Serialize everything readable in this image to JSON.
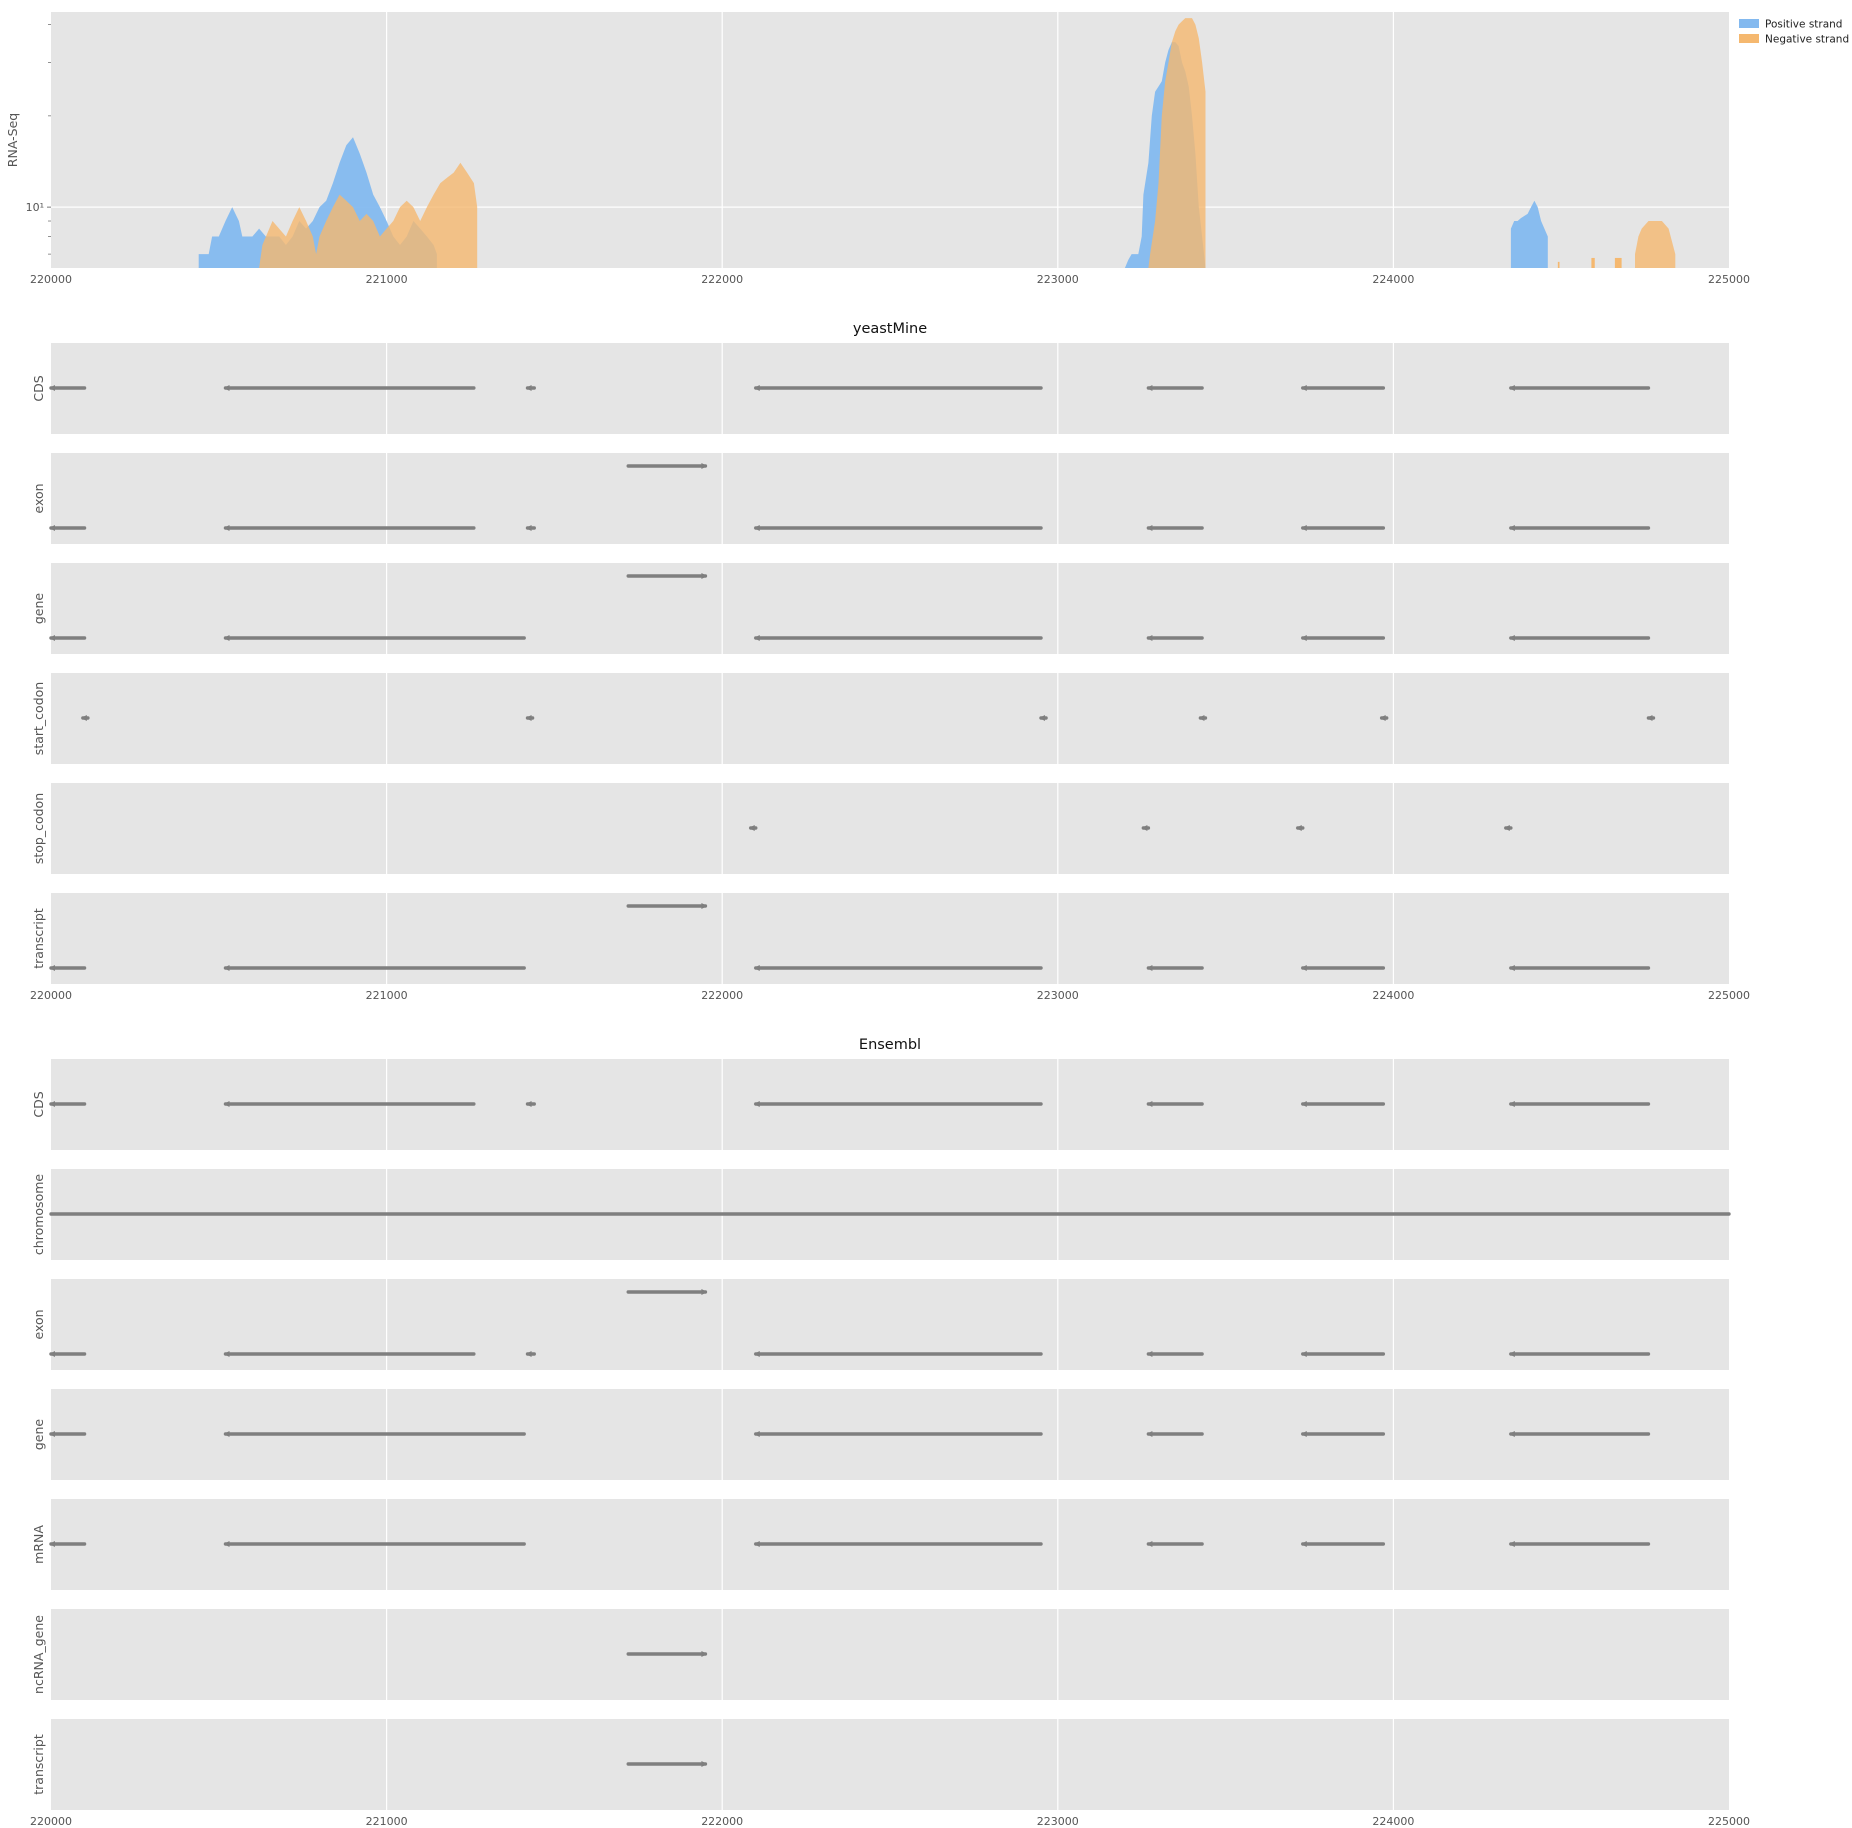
{
  "chart_data": [
    {
      "type": "area",
      "ylabel": "RNA-Seq",
      "xlim": [
        220000,
        225000
      ],
      "x_ticks": [
        "220000",
        "221000",
        "222000",
        "223000",
        "224000",
        "225000"
      ],
      "y_scale": "log",
      "y_ticks": [
        "10¹"
      ],
      "ylim": [
        6.3,
        44
      ],
      "grid": true,
      "legend_position": "top-right",
      "legend": [
        "Positive strand",
        "Negative strand"
      ],
      "colors": {
        "positive": "#83b9ef",
        "negative": "#f5b86f",
        "overlap": "#bfa785"
      },
      "series": [
        {
          "name": "Positive strand",
          "points": [
            [
              220440,
              6.3
            ],
            [
              220440,
              7
            ],
            [
              220470,
              7
            ],
            [
              220480,
              8
            ],
            [
              220500,
              8
            ],
            [
              220520,
              9
            ],
            [
              220540,
              10
            ],
            [
              220560,
              9
            ],
            [
              220570,
              8
            ],
            [
              220600,
              8
            ],
            [
              220620,
              8.5
            ],
            [
              220640,
              8
            ],
            [
              220660,
              8
            ],
            [
              220680,
              8
            ],
            [
              220700,
              7.5
            ],
            [
              220720,
              8
            ],
            [
              220740,
              9
            ],
            [
              220760,
              8.5
            ],
            [
              220780,
              9
            ],
            [
              220800,
              10
            ],
            [
              220820,
              10.5
            ],
            [
              220840,
              12
            ],
            [
              220860,
              14
            ],
            [
              220880,
              16
            ],
            [
              220900,
              17
            ],
            [
              220920,
              15
            ],
            [
              220940,
              13
            ],
            [
              220960,
              11
            ],
            [
              220980,
              10
            ],
            [
              221000,
              9
            ],
            [
              221020,
              8
            ],
            [
              221040,
              7.5
            ],
            [
              221060,
              8
            ],
            [
              221080,
              9
            ],
            [
              221100,
              8.5
            ],
            [
              221120,
              8
            ],
            [
              221140,
              7.5
            ],
            [
              221150,
              7
            ],
            [
              221150,
              6.3
            ],
            [
              223200,
              6.3
            ],
            [
              223210,
              6.7
            ],
            [
              223220,
              7
            ],
            [
              223240,
              7
            ],
            [
              223250,
              8
            ],
            [
              223255,
              11
            ],
            [
              223270,
              14
            ],
            [
              223280,
              20
            ],
            [
              223290,
              24
            ],
            [
              223300,
              25
            ],
            [
              223310,
              26
            ],
            [
              223320,
              30
            ],
            [
              223330,
              33
            ],
            [
              223340,
              35
            ],
            [
              223350,
              35
            ],
            [
              223360,
              34
            ],
            [
              223370,
              30
            ],
            [
              223380,
              28
            ],
            [
              223390,
              25
            ],
            [
              223400,
              20
            ],
            [
              223410,
              15
            ],
            [
              223420,
              10
            ],
            [
              223430,
              8
            ],
            [
              223440,
              6.3
            ],
            [
              224350,
              6.3
            ],
            [
              224350,
              8.5
            ],
            [
              224360,
              9
            ],
            [
              224370,
              9
            ],
            [
              224380,
              9.2
            ],
            [
              224400,
              9.5
            ],
            [
              224410,
              10
            ],
            [
              224420,
              10.5
            ],
            [
              224430,
              10
            ],
            [
              224440,
              9
            ],
            [
              224450,
              8.5
            ],
            [
              224460,
              8
            ],
            [
              224460,
              6.3
            ]
          ]
        },
        {
          "name": "Negative strand",
          "points": [
            [
              220620,
              6.3
            ],
            [
              220630,
              7.5
            ],
            [
              220660,
              9
            ],
            [
              220700,
              8
            ],
            [
              220720,
              9
            ],
            [
              220740,
              10
            ],
            [
              220760,
              9
            ],
            [
              220780,
              8
            ],
            [
              220790,
              7
            ],
            [
              220800,
              8
            ],
            [
              220820,
              9
            ],
            [
              220840,
              10
            ],
            [
              220860,
              11
            ],
            [
              220880,
              10.5
            ],
            [
              220900,
              10
            ],
            [
              220920,
              9
            ],
            [
              220940,
              9.5
            ],
            [
              220960,
              9
            ],
            [
              220980,
              8
            ],
            [
              221000,
              8.5
            ],
            [
              221020,
              9
            ],
            [
              221040,
              10
            ],
            [
              221060,
              10.5
            ],
            [
              221080,
              10
            ],
            [
              221100,
              9
            ],
            [
              221120,
              10
            ],
            [
              221140,
              11
            ],
            [
              221160,
              12
            ],
            [
              221180,
              12.5
            ],
            [
              221200,
              13
            ],
            [
              221220,
              14
            ],
            [
              221240,
              13
            ],
            [
              221260,
              12
            ],
            [
              221270,
              10
            ],
            [
              221270,
              6.3
            ],
            [
              223270,
              6.3
            ],
            [
              223275,
              7
            ],
            [
              223290,
              9
            ],
            [
              223300,
              12
            ],
            [
              223310,
              20
            ],
            [
              223320,
              26
            ],
            [
              223330,
              30
            ],
            [
              223340,
              35
            ],
            [
              223350,
              38
            ],
            [
              223360,
              40
            ],
            [
              223370,
              41
            ],
            [
              223380,
              42
            ],
            [
              223400,
              42
            ],
            [
              223410,
              40
            ],
            [
              223420,
              36
            ],
            [
              223430,
              30
            ],
            [
              223440,
              24
            ],
            [
              223440,
              6.3
            ],
            [
              224720,
              6.3
            ],
            [
              224720,
              7
            ],
            [
              224730,
              8
            ],
            [
              224740,
              8.5
            ],
            [
              224760,
              9
            ],
            [
              224780,
              9
            ],
            [
              224800,
              9
            ],
            [
              224820,
              8.5
            ],
            [
              224840,
              7
            ],
            [
              224840,
              6.3
            ]
          ]
        }
      ]
    },
    {
      "type": "feature-tracks",
      "title": "yeastMine",
      "xlim": [
        220000,
        225000
      ],
      "x_ticks": [
        "220000",
        "221000",
        "222000",
        "223000",
        "224000",
        "225000"
      ],
      "tracks": [
        {
          "label": "CDS",
          "features": [
            [
              220000,
              220100,
              "-",
              0
            ],
            [
              220520,
              221260,
              "-",
              0
            ],
            [
              221420,
              221440,
              "-",
              0
            ],
            [
              222100,
              222950,
              "-",
              0
            ],
            [
              223270,
              223430,
              "-",
              0
            ],
            [
              223730,
              223970,
              "-",
              0
            ],
            [
              224350,
              224760,
              "-",
              0
            ]
          ]
        },
        {
          "label": "exon",
          "features": [
            [
              221720,
              221950,
              "+",
              1
            ],
            [
              220000,
              220100,
              "-",
              0
            ],
            [
              220520,
              221260,
              "-",
              0
            ],
            [
              221420,
              221440,
              "-",
              0
            ],
            [
              222100,
              222950,
              "-",
              0
            ],
            [
              223270,
              223430,
              "-",
              0
            ],
            [
              223730,
              223970,
              "-",
              0
            ],
            [
              224350,
              224760,
              "-",
              0
            ]
          ]
        },
        {
          "label": "gene",
          "features": [
            [
              221720,
              221950,
              "+",
              1
            ],
            [
              220000,
              220100,
              "-",
              0
            ],
            [
              220520,
              221410,
              "-",
              0
            ],
            [
              222100,
              222950,
              "-",
              0
            ],
            [
              223270,
              223430,
              "-",
              0
            ],
            [
              223730,
              223970,
              "-",
              0
            ],
            [
              224350,
              224760,
              "-",
              0
            ]
          ]
        },
        {
          "label": "start_codon",
          "features": [
            [
              220095,
              220110,
              "-",
              0
            ],
            [
              221420,
              221435,
              "-",
              0
            ],
            [
              222950,
              222965,
              "-",
              0
            ],
            [
              223425,
              223440,
              "-",
              0
            ],
            [
              223965,
              223980,
              "-",
              0
            ],
            [
              224760,
              224775,
              "-",
              0
            ]
          ]
        },
        {
          "label": "stop_codon",
          "features": [
            [
              222085,
              222100,
              "-",
              0
            ],
            [
              223255,
              223270,
              "-",
              0
            ],
            [
              223715,
              223730,
              "-",
              0
            ],
            [
              224335,
              224350,
              "-",
              0
            ]
          ]
        },
        {
          "label": "transcript",
          "features": [
            [
              221720,
              221950,
              "+",
              1
            ],
            [
              220000,
              220100,
              "-",
              0
            ],
            [
              220520,
              221410,
              "-",
              0
            ],
            [
              222100,
              222950,
              "-",
              0
            ],
            [
              223270,
              223430,
              "-",
              0
            ],
            [
              223730,
              223970,
              "-",
              0
            ],
            [
              224350,
              224760,
              "-",
              0
            ]
          ]
        }
      ]
    },
    {
      "type": "feature-tracks",
      "title": "Ensembl",
      "xlim": [
        220000,
        225000
      ],
      "x_ticks": [
        "220000",
        "221000",
        "222000",
        "223000",
        "224000",
        "225000"
      ],
      "tracks": [
        {
          "label": "CDS",
          "features": [
            [
              220000,
              220100,
              "-",
              0
            ],
            [
              220520,
              221260,
              "-",
              0
            ],
            [
              221420,
              221440,
              "-",
              0
            ],
            [
              222100,
              222950,
              "-",
              0
            ],
            [
              223270,
              223430,
              "-",
              0
            ],
            [
              223730,
              223970,
              "-",
              0
            ],
            [
              224350,
              224760,
              "-",
              0
            ]
          ]
        },
        {
          "label": "chromosome",
          "features": [
            [
              220000,
              225000,
              ".",
              0
            ]
          ]
        },
        {
          "label": "exon",
          "features": [
            [
              221720,
              221950,
              "+",
              1
            ],
            [
              220000,
              220100,
              "-",
              0
            ],
            [
              220520,
              221260,
              "-",
              0
            ],
            [
              221420,
              221440,
              "-",
              0
            ],
            [
              222100,
              222950,
              "-",
              0
            ],
            [
              223270,
              223430,
              "-",
              0
            ],
            [
              223730,
              223970,
              "-",
              0
            ],
            [
              224350,
              224760,
              "-",
              0
            ]
          ]
        },
        {
          "label": "gene",
          "features": [
            [
              220000,
              220100,
              "-",
              0
            ],
            [
              220520,
              221410,
              "-",
              0
            ],
            [
              222100,
              222950,
              "-",
              0
            ],
            [
              223270,
              223430,
              "-",
              0
            ],
            [
              223730,
              223970,
              "-",
              0
            ],
            [
              224350,
              224760,
              "-",
              0
            ]
          ]
        },
        {
          "label": "mRNA",
          "features": [
            [
              220000,
              220100,
              "-",
              0
            ],
            [
              220520,
              221410,
              "-",
              0
            ],
            [
              222100,
              222950,
              "-",
              0
            ],
            [
              223270,
              223430,
              "-",
              0
            ],
            [
              223730,
              223970,
              "-",
              0
            ],
            [
              224350,
              224760,
              "-",
              0
            ]
          ]
        },
        {
          "label": "ncRNA_gene",
          "features": [
            [
              221720,
              221950,
              "+",
              0
            ]
          ]
        },
        {
          "label": "transcript",
          "features": [
            [
              221720,
              221950,
              "+",
              0
            ]
          ]
        }
      ]
    }
  ]
}
